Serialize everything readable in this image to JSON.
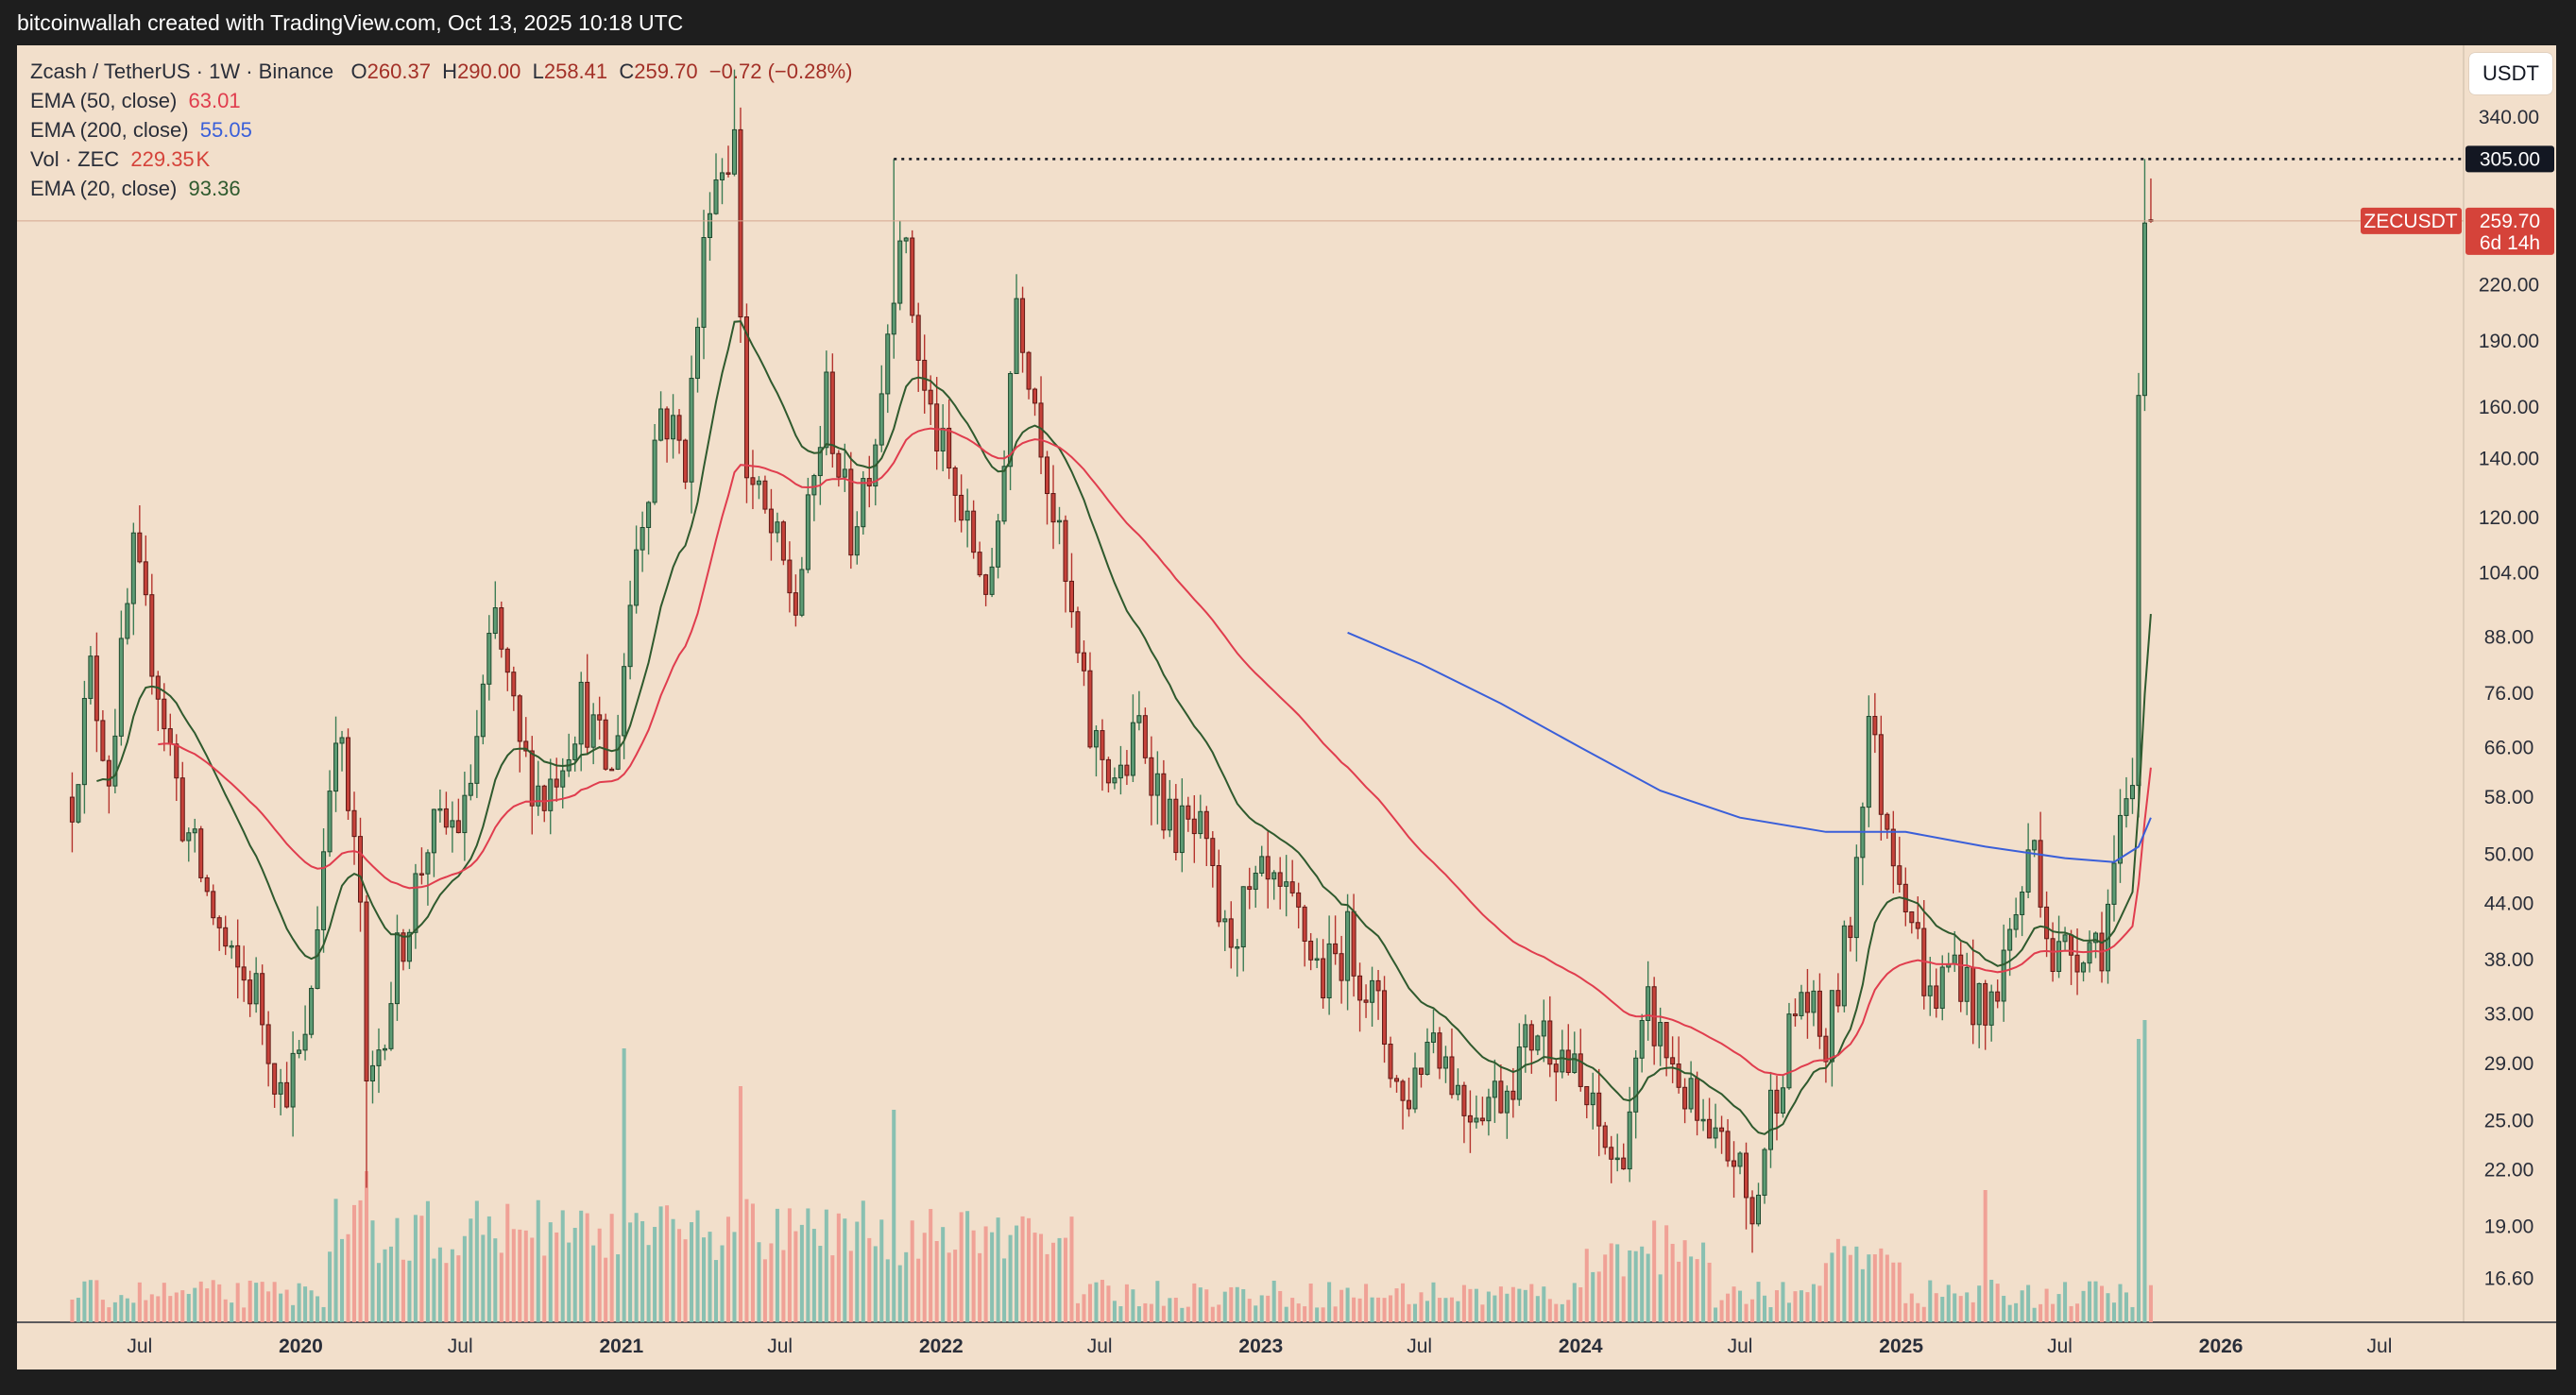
{
  "header": {
    "attribution": "bitcoinwallah created with TradingView.com, Oct 13, 2025 10:18 UTC"
  },
  "legend": {
    "symbol": "Zcash / TetherUS · 1W · Binance",
    "ohlc": {
      "open_label": "O",
      "open": "260.37",
      "high_label": "H",
      "high": "290.00",
      "low_label": "L",
      "low": "258.41",
      "close_label": "C",
      "close": "259.70",
      "change": "−0.72 (−0.28%)"
    },
    "ema50": {
      "label": "EMA (50, close)",
      "value": "63.01"
    },
    "ema200": {
      "label": "EMA (200, close)",
      "value": "55.05"
    },
    "vol": {
      "label": "Vol · ZEC",
      "value": "229.35",
      "unit": "K"
    },
    "ema20": {
      "label": "EMA (20, close)",
      "value": "93.36"
    }
  },
  "unit_button": "USDT",
  "tags": {
    "resistance": "305.00",
    "symbol": "ZECUSDT",
    "price": "259.70",
    "countdown": "6d 14h"
  },
  "colors": {
    "up": "#3d7d55",
    "down": "#b5342e",
    "vol_up": "#7dbcae",
    "vol_down": "#ef9a90",
    "ema20": "#2f5a2e",
    "ema50": "#e03d4e",
    "ema200": "#3a5fd9",
    "panel_bg": "#f2dfcb",
    "price_tag": "#d5433a"
  },
  "chart_data": {
    "type": "candlestick",
    "timeframe": "1W",
    "scale": "log",
    "y_ticks": [
      "340.00",
      "220.00",
      "190.00",
      "160.00",
      "140.00",
      "120.00",
      "104.00",
      "88.00",
      "76.00",
      "66.00",
      "58.00",
      "50.00",
      "44.00",
      "38.00",
      "33.00",
      "29.00",
      "25.00",
      "22.00",
      "19.00",
      "16.60"
    ],
    "x_ticks": [
      {
        "label": "Jul",
        "date": "2019-07-01",
        "year": false
      },
      {
        "label": "2020",
        "date": "2020-01-01",
        "year": true
      },
      {
        "label": "Jul",
        "date": "2020-07-01",
        "year": false
      },
      {
        "label": "2021",
        "date": "2021-01-01",
        "year": true
      },
      {
        "label": "Jul",
        "date": "2021-07-01",
        "year": false
      },
      {
        "label": "2022",
        "date": "2022-01-01",
        "year": true
      },
      {
        "label": "Jul",
        "date": "2022-07-01",
        "year": false
      },
      {
        "label": "2023",
        "date": "2023-01-01",
        "year": true
      },
      {
        "label": "Jul",
        "date": "2023-07-01",
        "year": false
      },
      {
        "label": "2024",
        "date": "2024-01-01",
        "year": true
      },
      {
        "label": "Jul",
        "date": "2024-07-01",
        "year": false
      },
      {
        "label": "2025",
        "date": "2025-01-01",
        "year": true
      },
      {
        "label": "Jul",
        "date": "2025-07-01",
        "year": false
      },
      {
        "label": "2026",
        "date": "2026-01-01",
        "year": true
      },
      {
        "label": "Jul",
        "date": "2026-07-01",
        "year": false
      }
    ],
    "x_range": [
      "2019-02-11",
      "2026-10-05"
    ],
    "y_range": [
      14.8,
      410
    ],
    "resistance_level": {
      "value": 305,
      "from": "2021-11-08"
    },
    "last_close": 259.7,
    "price_path": [
      [
        "2019-04-15",
        58
      ],
      [
        "2019-05-06",
        80
      ],
      [
        "2019-05-27",
        62
      ],
      [
        "2019-06-24",
        108
      ],
      [
        "2019-07-22",
        78
      ],
      [
        "2019-08-19",
        55
      ],
      [
        "2019-09-16",
        45
      ],
      [
        "2019-10-14",
        37
      ],
      [
        "2019-11-11",
        35
      ],
      [
        "2019-12-09",
        27
      ],
      [
        "2020-01-06",
        30
      ],
      [
        "2020-02-10",
        72
      ],
      [
        "2020-03-09",
        44
      ],
      [
        "2020-03-16",
        26
      ],
      [
        "2020-04-20",
        38
      ],
      [
        "2020-05-25",
        52
      ],
      [
        "2020-07-06",
        55
      ],
      [
        "2020-08-10",
        92
      ],
      [
        "2020-09-07",
        65
      ],
      [
        "2020-10-05",
        58
      ],
      [
        "2020-11-16",
        74
      ],
      [
        "2020-12-21",
        61
      ],
      [
        "2021-01-18",
        112
      ],
      [
        "2021-02-15",
        160
      ],
      [
        "2021-03-15",
        140
      ],
      [
        "2021-04-12",
        285
      ],
      [
        "2021-05-10",
        320
      ],
      [
        "2021-05-24",
        135
      ],
      [
        "2021-06-28",
        110
      ],
      [
        "2021-07-19",
        95
      ],
      [
        "2021-08-23",
        165
      ],
      [
        "2021-09-20",
        115
      ],
      [
        "2021-10-18",
        150
      ],
      [
        "2021-11-15",
        260
      ],
      [
        "2021-12-13",
        165
      ],
      [
        "2022-01-24",
        120
      ],
      [
        "2022-02-28",
        98
      ],
      [
        "2022-03-28",
        215
      ],
      [
        "2022-04-25",
        150
      ],
      [
        "2022-05-23",
        100
      ],
      [
        "2022-06-20",
        68
      ],
      [
        "2022-07-25",
        60
      ],
      [
        "2022-08-15",
        70
      ],
      [
        "2022-09-19",
        54
      ],
      [
        "2022-10-24",
        52
      ],
      [
        "2022-11-21",
        40
      ],
      [
        "2023-01-02",
        46
      ],
      [
        "2023-02-13",
        42
      ],
      [
        "2023-03-13",
        36
      ],
      [
        "2023-04-10",
        40
      ],
      [
        "2023-05-15",
        33
      ],
      [
        "2023-06-12",
        26
      ],
      [
        "2023-07-17",
        32
      ],
      [
        "2023-08-21",
        26
      ],
      [
        "2023-10-02",
        27
      ],
      [
        "2023-11-13",
        32
      ],
      [
        "2023-12-11",
        30
      ],
      [
        "2024-01-08",
        26
      ],
      [
        "2024-02-12",
        22
      ],
      [
        "2024-03-18",
        33
      ],
      [
        "2024-04-22",
        28
      ],
      [
        "2024-05-27",
        23
      ],
      [
        "2024-06-24",
        23
      ],
      [
        "2024-07-15",
        19
      ],
      [
        "2024-08-05",
        26
      ],
      [
        "2024-09-09",
        35
      ],
      [
        "2024-10-07",
        30
      ],
      [
        "2024-11-04",
        42
      ],
      [
        "2024-11-25",
        72
      ],
      [
        "2024-12-09",
        58
      ],
      [
        "2025-01-06",
        46
      ],
      [
        "2025-02-03",
        34
      ],
      [
        "2025-03-03",
        38
      ],
      [
        "2025-04-07",
        32
      ],
      [
        "2025-05-12",
        43
      ],
      [
        "2025-06-02",
        52
      ],
      [
        "2025-06-23",
        38
      ],
      [
        "2025-07-28",
        40
      ],
      [
        "2025-08-18",
        40
      ],
      [
        "2025-09-08",
        52
      ],
      [
        "2025-09-22",
        58
      ],
      [
        "2025-09-29",
        165
      ],
      [
        "2025-10-06",
        262
      ],
      [
        "2025-10-13",
        259.7
      ]
    ],
    "spikes": [
      {
        "date": "2021-05-10",
        "high": 385
      },
      {
        "date": "2021-11-08",
        "high": 305
      },
      {
        "date": "2020-03-16",
        "low": 21
      },
      {
        "date": "2025-10-06",
        "high": 305
      }
    ],
    "ema200_path": [
      [
        "2023-04-10",
        89
      ],
      [
        "2023-07-03",
        82
      ],
      [
        "2023-10-02",
        74
      ],
      [
        "2024-01-01",
        66
      ],
      [
        "2024-04-01",
        59
      ],
      [
        "2024-07-01",
        55
      ],
      [
        "2024-10-07",
        53
      ],
      [
        "2025-01-06",
        53
      ],
      [
        "2025-04-07",
        51
      ],
      [
        "2025-07-07",
        49.5
      ],
      [
        "2025-09-01",
        49
      ],
      [
        "2025-09-29",
        51
      ],
      [
        "2025-10-13",
        55
      ]
    ],
    "volume_spikes": [
      {
        "date": "2020-03-16",
        "value": 0.32
      },
      {
        "date": "2021-01-04",
        "value": 0.58
      },
      {
        "date": "2021-05-17",
        "value": 0.5
      },
      {
        "date": "2021-11-08",
        "value": 0.45
      },
      {
        "date": "2025-04-07",
        "value": 0.28
      },
      {
        "date": "2025-09-29",
        "value": 0.6
      },
      {
        "date": "2025-10-06",
        "value": 0.64
      }
    ]
  }
}
